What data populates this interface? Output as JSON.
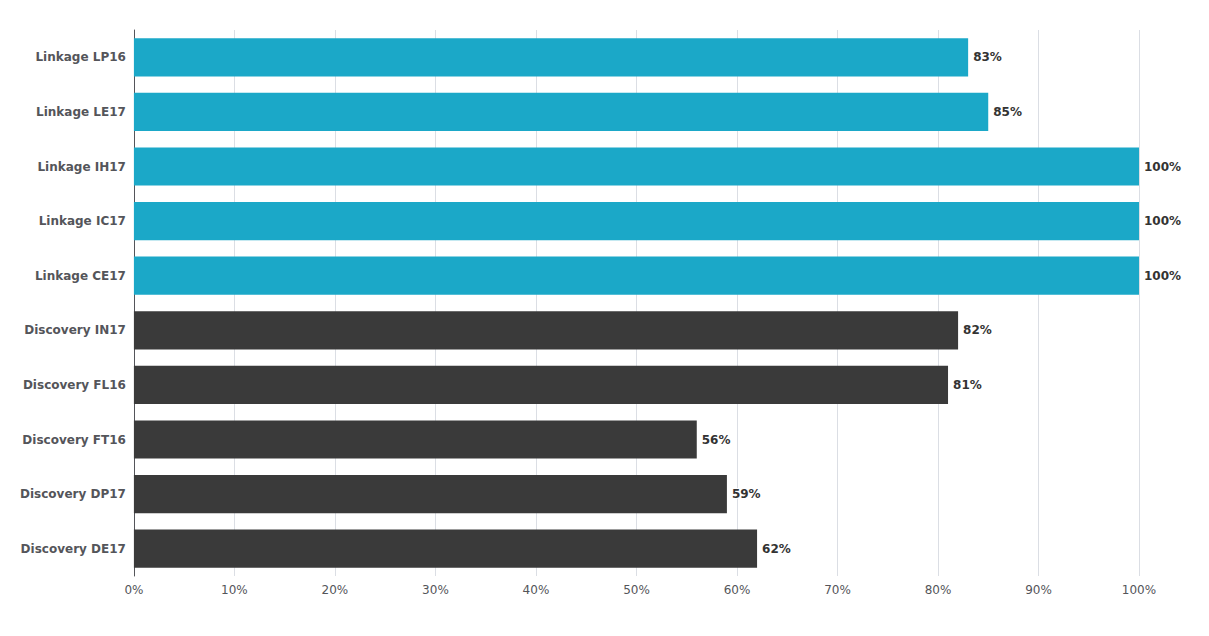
{
  "chart_data": {
    "type": "bar",
    "orientation": "horizontal",
    "categories": [
      "Discovery DE17",
      "Discovery DP17",
      "Discovery FT16",
      "Discovery FL16",
      "Discovery IN17",
      "Linkage CE17",
      "Linkage IC17",
      "Linkage IH17",
      "Linkage LE17",
      "Linkage LP16"
    ],
    "values": [
      62,
      59,
      56,
      81,
      82,
      100,
      100,
      100,
      85,
      83
    ],
    "value_labels": [
      "62%",
      "59%",
      "56%",
      "81%",
      "82%",
      "100%",
      "100%",
      "100%",
      "85%",
      "83%"
    ],
    "data_labels": true,
    "colors": [
      "#3a3a3a",
      "#3a3a3a",
      "#3a3a3a",
      "#3a3a3a",
      "#3a3a3a",
      "#1ba8c8",
      "#1ba8c8",
      "#1ba8c8",
      "#1ba8c8",
      "#1ba8c8"
    ],
    "xlim": [
      0,
      100
    ],
    "xticks": [
      {
        "value": 0,
        "label": "0%"
      },
      {
        "value": 10,
        "label": "10%"
      },
      {
        "value": 20,
        "label": "20%"
      },
      {
        "value": 30,
        "label": "30%"
      },
      {
        "value": 40,
        "label": "40%"
      },
      {
        "value": 50,
        "label": "50%"
      },
      {
        "value": 60,
        "label": "60%"
      },
      {
        "value": 70,
        "label": "70%"
      },
      {
        "value": 80,
        "label": "80%"
      },
      {
        "value": 90,
        "label": "90%"
      },
      {
        "value": 100,
        "label": "100%"
      }
    ],
    "grid": true
  }
}
